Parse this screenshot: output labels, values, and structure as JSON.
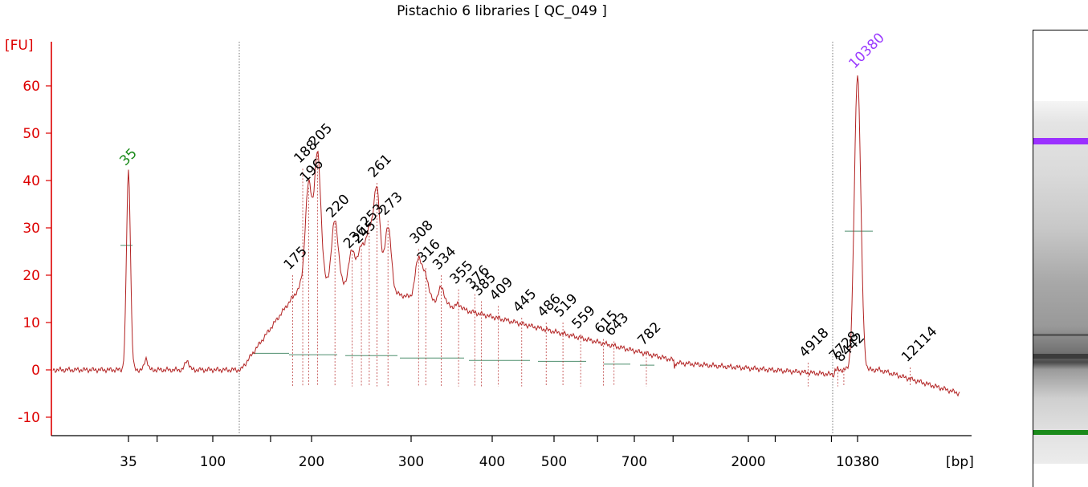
{
  "chart_data": {
    "type": "line",
    "title": "Pistachio 6 libraries  [ QC_049 ]",
    "ylabel": "[FU]",
    "xlabel": "[bp]",
    "ylim": [
      -14,
      69
    ],
    "y_ticks": [
      -10,
      0,
      10,
      20,
      30,
      40,
      50,
      60
    ],
    "x_tick_labels": [
      "35",
      "100",
      "200",
      "300",
      "400",
      "500",
      "700",
      "2000",
      "10380"
    ],
    "markers": [
      {
        "label": "35",
        "size_bp": 35,
        "fu": 42,
        "color": "#1a8a1a"
      },
      {
        "label": "10380",
        "size_bp": 10380,
        "fu": 62.5,
        "color": "#9b3bff"
      }
    ],
    "peaks": [
      {
        "label": "175",
        "size_bp": 175,
        "fu": 20
      },
      {
        "label": "188",
        "size_bp": 188,
        "fu": 42.5
      },
      {
        "label": "196",
        "size_bp": 196,
        "fu": 38.5
      },
      {
        "label": "205",
        "size_bp": 205,
        "fu": 46
      },
      {
        "label": "220",
        "size_bp": 220,
        "fu": 31
      },
      {
        "label": "236",
        "size_bp": 236,
        "fu": 24.5
      },
      {
        "label": "245",
        "size_bp": 245,
        "fu": 25.5
      },
      {
        "label": "253",
        "size_bp": 253,
        "fu": 29
      },
      {
        "label": "261",
        "size_bp": 261,
        "fu": 39.5
      },
      {
        "label": "273",
        "size_bp": 273,
        "fu": 31.5
      },
      {
        "label": "308",
        "size_bp": 308,
        "fu": 25.5
      },
      {
        "label": "316",
        "size_bp": 316,
        "fu": 21.5
      },
      {
        "label": "334",
        "size_bp": 334,
        "fu": 20
      },
      {
        "label": "355",
        "size_bp": 355,
        "fu": 17
      },
      {
        "label": "376",
        "size_bp": 376,
        "fu": 16
      },
      {
        "label": "385",
        "size_bp": 385,
        "fu": 14.5
      },
      {
        "label": "409",
        "size_bp": 409,
        "fu": 13.5
      },
      {
        "label": "445",
        "size_bp": 445,
        "fu": 11
      },
      {
        "label": "486",
        "size_bp": 486,
        "fu": 10
      },
      {
        "label": "519",
        "size_bp": 519,
        "fu": 10
      },
      {
        "label": "559",
        "size_bp": 559,
        "fu": 7.5
      },
      {
        "label": "615",
        "size_bp": 615,
        "fu": 6.5
      },
      {
        "label": "643",
        "size_bp": 643,
        "fu": 6
      },
      {
        "label": "782",
        "size_bp": 782,
        "fu": 4
      },
      {
        "label": "4918",
        "size_bp": 4918,
        "fu": 1.5
      },
      {
        "label": "7728",
        "size_bp": 7728,
        "fu": 0.8
      },
      {
        "label": "8442",
        "size_bp": 8442,
        "fu": 0.5
      },
      {
        "label": "12114",
        "size_bp": 12114,
        "fu": 0.5
      }
    ],
    "colors": {
      "trace": "#b22222",
      "axis": "#dd0000",
      "baseline_segments": "#4f8f6f",
      "upper_marker_band": "#9b30ff",
      "lower_marker_band": "#1a8a1a"
    }
  }
}
